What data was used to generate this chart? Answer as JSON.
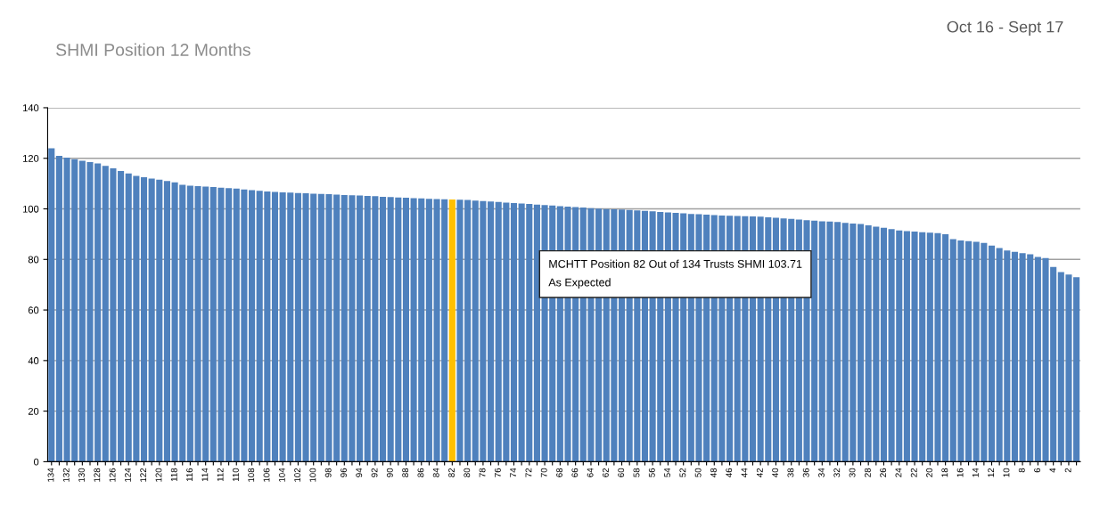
{
  "chart_data": {
    "type": "bar",
    "title": "SHMI Position 12 Months",
    "subtitle": "Oct 16 - Sept 17",
    "categories": [
      "134",
      null,
      "132",
      null,
      "130",
      null,
      "128",
      null,
      "126",
      null,
      "124",
      null,
      "122",
      null,
      "120",
      null,
      "118",
      null,
      "116",
      null,
      "114",
      null,
      "112",
      null,
      "110",
      null,
      "108",
      null,
      "106",
      null,
      "104",
      null,
      "102",
      null,
      "100",
      null,
      "98",
      null,
      "96",
      null,
      "94",
      null,
      "92",
      null,
      "90",
      null,
      "88",
      null,
      "86",
      null,
      "84",
      null,
      "82",
      null,
      "80",
      null,
      "78",
      null,
      "76",
      null,
      "74",
      null,
      "72",
      null,
      "70",
      null,
      "68",
      null,
      "66",
      null,
      "64",
      null,
      "62",
      null,
      "60",
      null,
      "58",
      null,
      "56",
      null,
      "54",
      null,
      "52",
      null,
      "50",
      null,
      "48",
      null,
      "46",
      null,
      "44",
      null,
      "42",
      null,
      "40",
      null,
      "38",
      null,
      "36",
      null,
      "34",
      null,
      "32",
      null,
      "30",
      null,
      "28",
      null,
      "26",
      null,
      "24",
      null,
      "22",
      null,
      "20",
      null,
      "18",
      null,
      "16",
      null,
      "14",
      null,
      "12",
      null,
      "10",
      null,
      "8",
      null,
      "6",
      null,
      "4",
      null,
      "2",
      null
    ],
    "values": [
      124,
      121,
      120.3,
      119.6,
      119,
      118.5,
      118,
      117,
      116,
      115,
      114,
      113,
      112.5,
      112,
      111.5,
      111,
      110.5,
      109.5,
      109.2,
      109,
      108.8,
      108.6,
      108.4,
      108.2,
      108,
      107.7,
      107.4,
      107.1,
      106.9,
      106.7,
      106.5,
      106.4,
      106.3,
      106.2,
      106,
      105.9,
      105.8,
      105.6,
      105.5,
      105.4,
      105.3,
      105.1,
      105,
      104.8,
      104.7,
      104.5,
      104.4,
      104.2,
      104.1,
      104,
      103.9,
      103.8,
      103.71,
      103.6,
      103.5,
      103.3,
      103.1,
      102.9,
      102.7,
      102.5,
      102.3,
      102.1,
      101.9,
      101.7,
      101.5,
      101.3,
      101.1,
      100.9,
      100.7,
      100.5,
      100.3,
      100.1,
      99.9,
      99.8,
      99.7,
      99.6,
      99.4,
      99.2,
      99,
      98.8,
      98.6,
      98.4,
      98.2,
      98,
      97.9,
      97.7,
      97.5,
      97.4,
      97.3,
      97.2,
      97.1,
      97,
      96.9,
      96.7,
      96.5,
      96.2,
      96,
      95.8,
      95.5,
      95.3,
      95.1,
      95,
      94.8,
      94.5,
      94.2,
      94,
      93.5,
      93,
      92.5,
      92,
      91.5,
      91.2,
      91,
      90.8,
      90.6,
      90.4,
      90,
      88,
      87.5,
      87.2,
      87,
      86.5,
      85.5,
      84.5,
      83.5,
      83,
      82.5,
      82,
      81,
      80.5,
      77,
      75,
      74,
      73
    ],
    "colors": [
      "#4f81bd",
      "#4f81bd",
      "#4f81bd",
      "#4f81bd",
      "#4f81bd",
      "#4f81bd",
      "#4f81bd",
      "#4f81bd",
      "#4f81bd",
      "#4f81bd",
      "#4f81bd",
      "#4f81bd",
      "#4f81bd",
      "#4f81bd",
      "#4f81bd",
      "#4f81bd",
      "#4f81bd",
      "#4f81bd",
      "#4f81bd",
      "#4f81bd",
      "#4f81bd",
      "#4f81bd",
      "#4f81bd",
      "#4f81bd",
      "#4f81bd",
      "#4f81bd",
      "#4f81bd",
      "#4f81bd",
      "#4f81bd",
      "#4f81bd",
      "#4f81bd",
      "#4f81bd",
      "#4f81bd",
      "#4f81bd",
      "#4f81bd",
      "#4f81bd",
      "#4f81bd",
      "#4f81bd",
      "#4f81bd",
      "#4f81bd",
      "#4f81bd",
      "#4f81bd",
      "#4f81bd",
      "#4f81bd",
      "#4f81bd",
      "#4f81bd",
      "#4f81bd",
      "#4f81bd",
      "#4f81bd",
      "#4f81bd",
      "#4f81bd",
      "#4f81bd",
      "#ffc000",
      "#4f81bd",
      "#4f81bd",
      "#4f81bd",
      "#4f81bd",
      "#4f81bd",
      "#4f81bd",
      "#4f81bd",
      "#4f81bd",
      "#4f81bd",
      "#4f81bd",
      "#4f81bd",
      "#4f81bd",
      "#4f81bd",
      "#4f81bd",
      "#4f81bd",
      "#4f81bd",
      "#4f81bd",
      "#4f81bd",
      "#4f81bd",
      "#4f81bd",
      "#4f81bd",
      "#4f81bd",
      "#4f81bd",
      "#4f81bd",
      "#4f81bd",
      "#4f81bd",
      "#4f81bd",
      "#4f81bd",
      "#4f81bd",
      "#4f81bd",
      "#4f81bd",
      "#4f81bd",
      "#4f81bd",
      "#4f81bd",
      "#4f81bd",
      "#4f81bd",
      "#4f81bd",
      "#4f81bd",
      "#4f81bd",
      "#4f81bd",
      "#4f81bd",
      "#4f81bd",
      "#4f81bd",
      "#4f81bd",
      "#4f81bd",
      "#4f81bd",
      "#4f81bd",
      "#4f81bd",
      "#4f81bd",
      "#4f81bd",
      "#4f81bd",
      "#4f81bd",
      "#4f81bd",
      "#4f81bd",
      "#4f81bd",
      "#4f81bd",
      "#4f81bd",
      "#4f81bd",
      "#4f81bd",
      "#4f81bd",
      "#4f81bd",
      "#4f81bd",
      "#4f81bd",
      "#4f81bd",
      "#4f81bd",
      "#4f81bd",
      "#4f81bd",
      "#4f81bd",
      "#4f81bd",
      "#4f81bd",
      "#4f81bd",
      "#4f81bd",
      "#4f81bd",
      "#4f81bd",
      "#4f81bd",
      "#4f81bd",
      "#4f81bd",
      "#4f81bd",
      "#4f81bd",
      "#4f81bd",
      "#4f81bd"
    ],
    "ylim": [
      0,
      140
    ],
    "yticks": [
      0,
      20,
      40,
      60,
      80,
      100,
      120,
      140
    ],
    "grid": "y",
    "annotations": [
      "MCHTT Position 82 Out of 134 Trusts SHMI 103.71\nAs Expected"
    ]
  }
}
